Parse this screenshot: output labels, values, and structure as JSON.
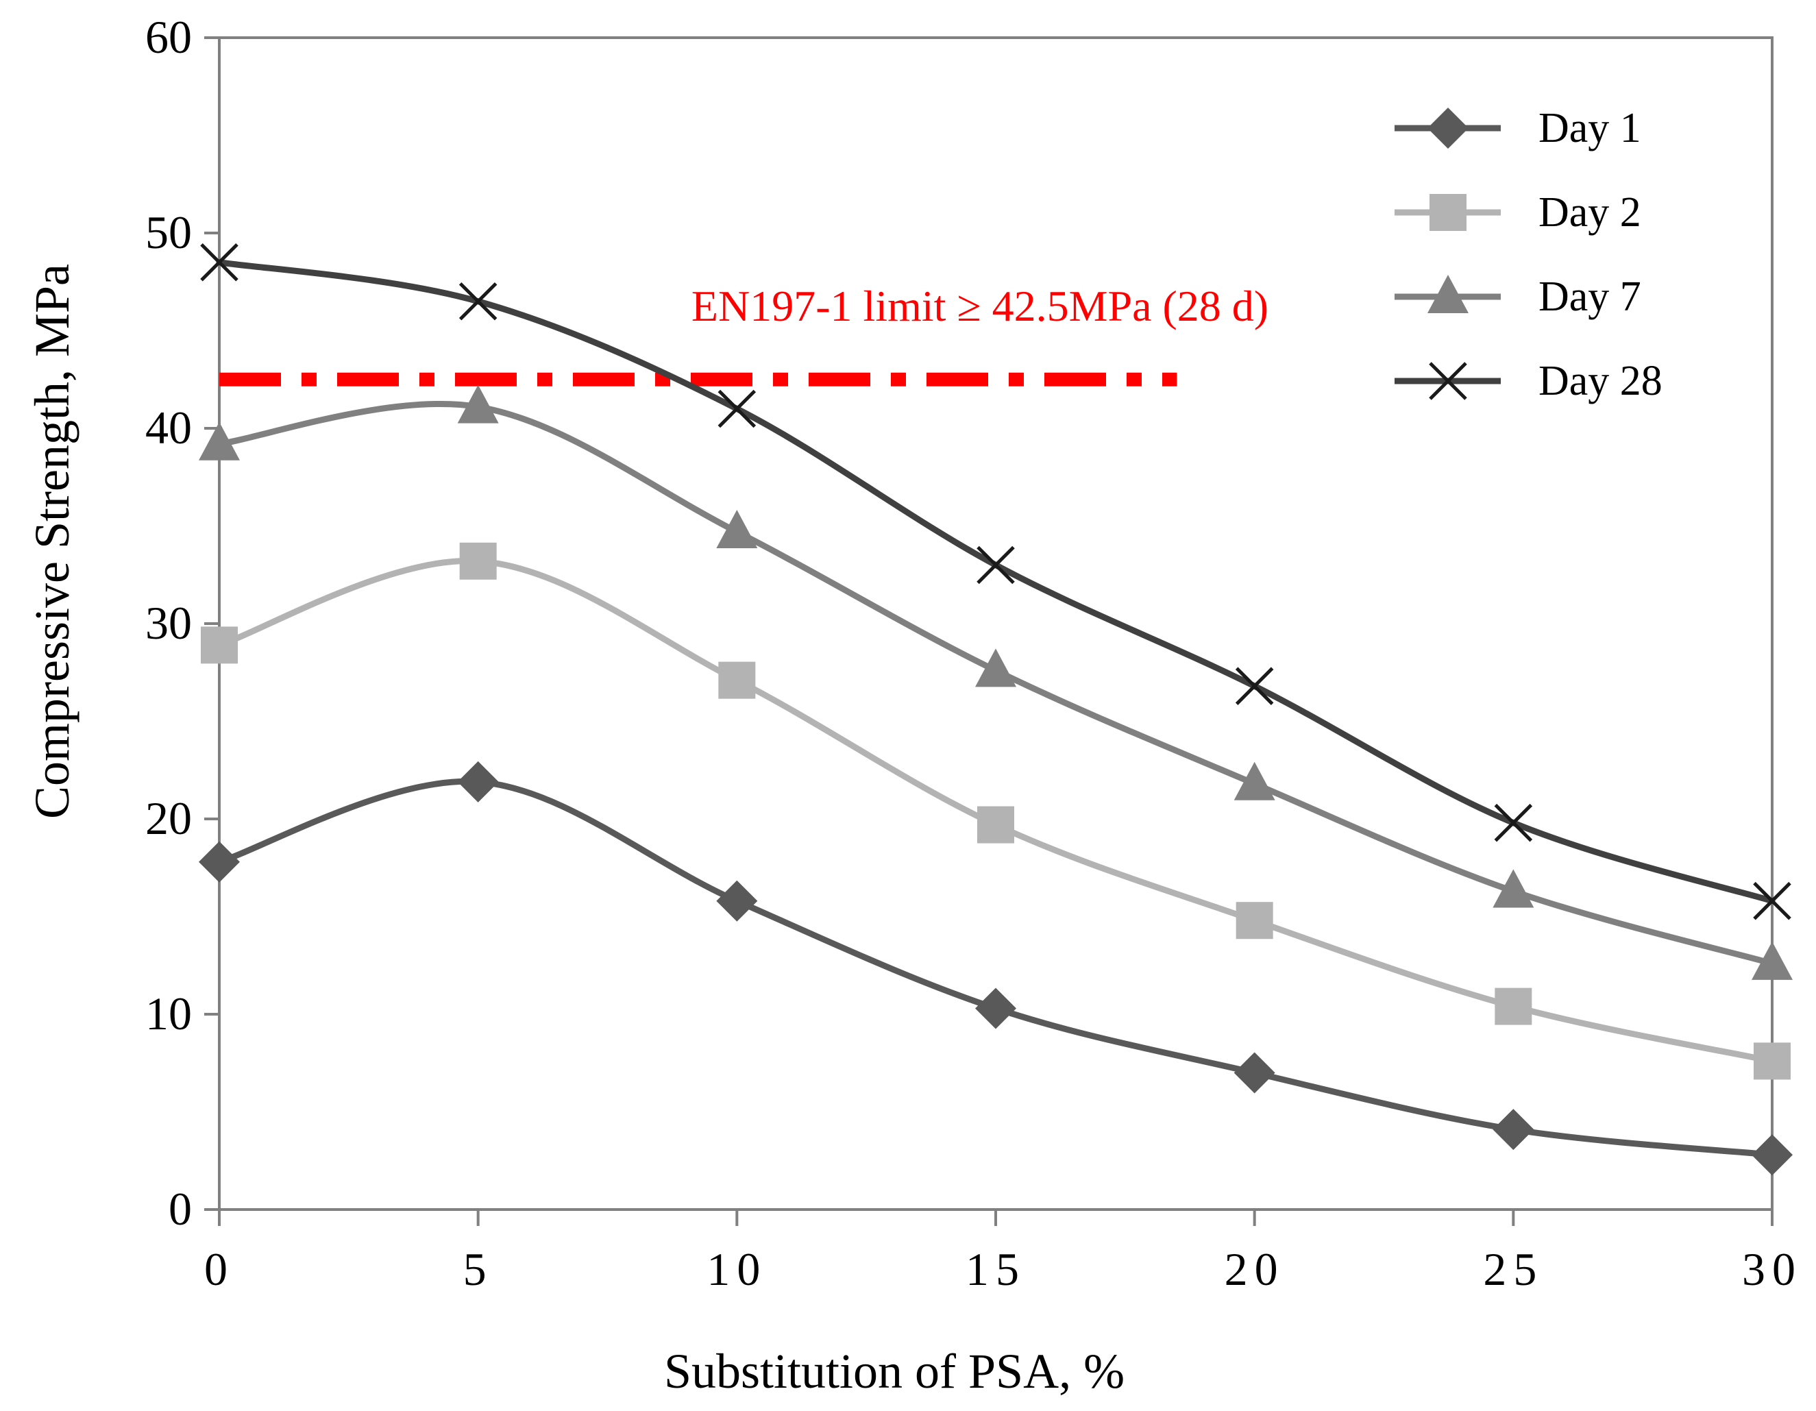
{
  "chart_data": {
    "type": "line",
    "title": "",
    "xlabel": "Substitution of PSA, %",
    "ylabel": "Compressive Strength, MPa",
    "x": [
      0,
      5,
      10,
      15,
      20,
      25,
      30
    ],
    "xlim": [
      0,
      30
    ],
    "ylim": [
      0,
      60
    ],
    "x_ticks": [
      0,
      5,
      10,
      15,
      20,
      25,
      30
    ],
    "y_ticks": [
      0,
      10,
      20,
      30,
      40,
      50,
      60
    ],
    "grid": false,
    "legend_position": "top-right",
    "smooth": true,
    "series": [
      {
        "name": "Day 1",
        "marker": "diamond",
        "color": "#595959",
        "values": [
          17.8,
          21.9,
          15.8,
          10.3,
          7.0,
          4.1,
          2.8
        ]
      },
      {
        "name": "Day 2",
        "marker": "square",
        "color": "#b3b3b3",
        "values": [
          28.9,
          33.2,
          27.1,
          19.7,
          14.8,
          10.4,
          7.6
        ]
      },
      {
        "name": "Day 7",
        "marker": "triangle",
        "color": "#808080",
        "values": [
          39.2,
          41.1,
          34.7,
          27.6,
          21.8,
          16.3,
          12.6
        ]
      },
      {
        "name": "Day 28",
        "marker": "x",
        "color": "#404040",
        "values": [
          48.5,
          46.5,
          41.0,
          33.0,
          26.8,
          19.8,
          15.8
        ]
      }
    ],
    "annotations": [
      {
        "text": "EN197-1 limit ≥ 42.5MPa (28 d)",
        "color": "#ff0000"
      }
    ],
    "reference_lines": [
      {
        "label": "EN197-1 limit",
        "y": 42.5,
        "x_range": [
          0,
          18.5
        ],
        "style": "dash-dot",
        "color": "#ff0000"
      }
    ]
  }
}
